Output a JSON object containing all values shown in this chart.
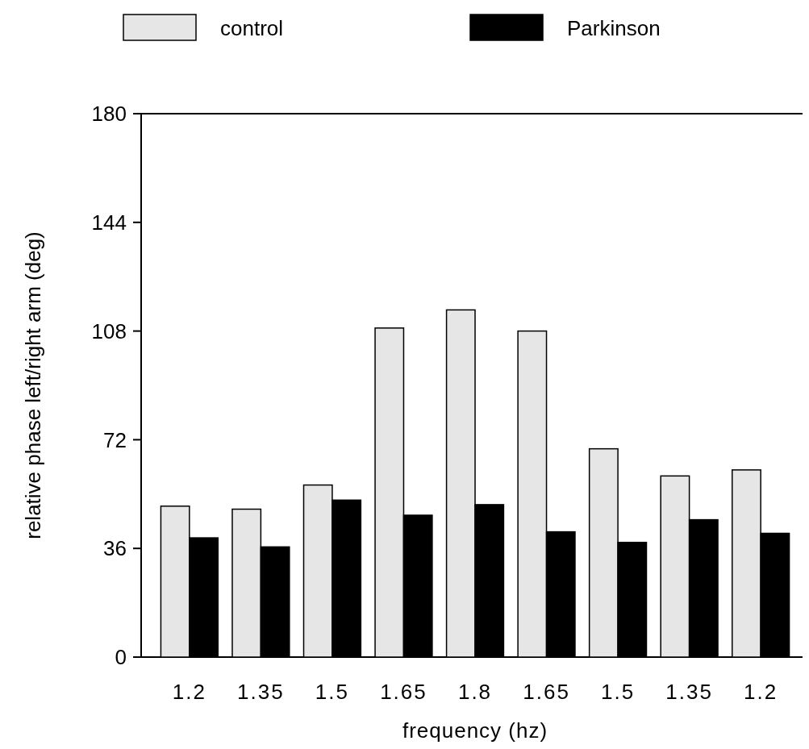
{
  "chart_data": {
    "type": "bar",
    "xlabel": "frequency (hz)",
    "ylabel": "relative phase left/right arm (deg)",
    "categories": [
      "1.2",
      "1.35",
      "1.5",
      "1.65",
      "1.8",
      "1.65",
      "1.5",
      "1.35",
      "1.2"
    ],
    "series": [
      {
        "name": "control",
        "color": "#e6e6e6",
        "values": [
          50,
          49,
          57,
          109,
          115,
          108,
          69,
          60,
          62
        ]
      },
      {
        "name": "Parkinson",
        "color": "#000000",
        "values": [
          39.5,
          36.5,
          52,
          47,
          50.5,
          41.5,
          38,
          45.5,
          41
        ]
      }
    ],
    "ylim": [
      0,
      180
    ],
    "yticks": [
      0,
      36,
      72,
      108,
      144,
      180
    ],
    "legend": "top"
  }
}
